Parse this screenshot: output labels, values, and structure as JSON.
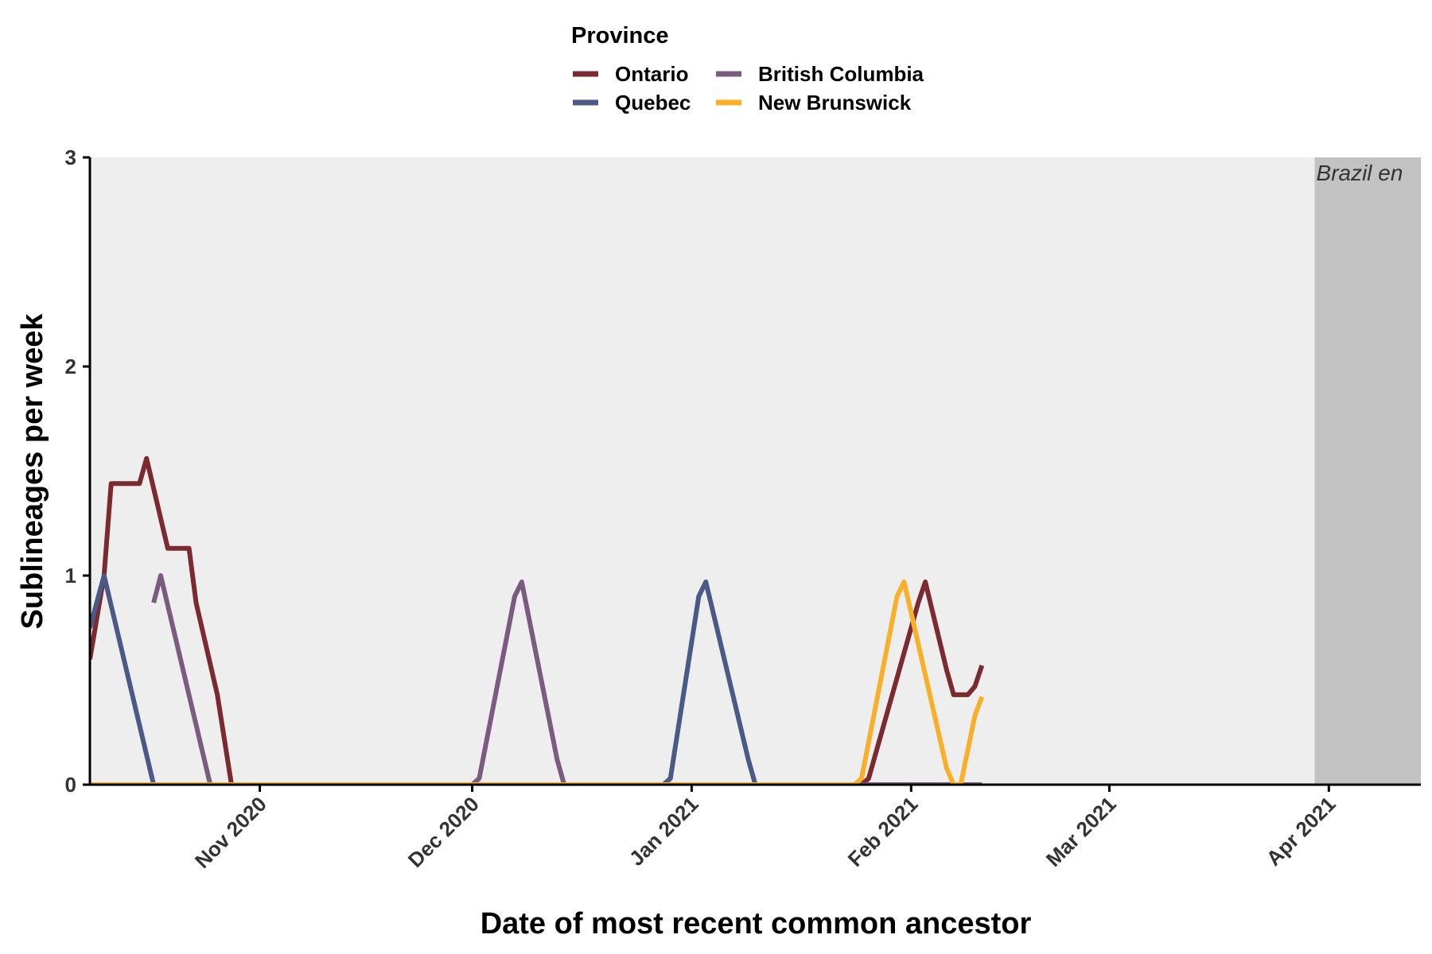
{
  "chart_data": {
    "type": "line",
    "title": "",
    "xlabel": "Date of most recent common ancestor",
    "ylabel": "Sublineages per week",
    "ylim": [
      0,
      3
    ],
    "yticks": [
      0,
      1,
      2,
      3
    ],
    "xlim": [
      "2020-10-08",
      "2021-04-14"
    ],
    "xticks": [
      {
        "date": "2020-11-01",
        "label": "Nov 2020"
      },
      {
        "date": "2020-12-01",
        "label": "Dec 2020"
      },
      {
        "date": "2021-01-01",
        "label": "Jan 2021"
      },
      {
        "date": "2021-02-01",
        "label": "Feb 2021"
      },
      {
        "date": "2021-03-01",
        "label": "Mar 2021"
      },
      {
        "date": "2021-04-01",
        "label": "Apr 2021"
      }
    ],
    "grid": false,
    "legend": {
      "title": "Province",
      "position": "top"
    },
    "annotation": {
      "text": "Brazil en",
      "region_start": "2021-03-30",
      "region_end": "2021-04-14",
      "color": "#c2c2c2"
    },
    "panel_color": "#eeeeee",
    "series": [
      {
        "name": "Ontario",
        "color": "#7b2a30",
        "points": [
          [
            "2020-10-08",
            0.6
          ],
          [
            "2020-10-10",
            1.0
          ],
          [
            "2020-10-11",
            1.44
          ],
          [
            "2020-10-14",
            1.44
          ],
          [
            "2020-10-15",
            1.44
          ],
          [
            "2020-10-15",
            1.44
          ],
          [
            "2020-10-16",
            1.56
          ],
          [
            "2020-10-19",
            1.13
          ],
          [
            "2020-10-22",
            1.13
          ],
          [
            "2020-10-23",
            0.87
          ],
          [
            "2020-10-26",
            0.43
          ],
          [
            "2020-10-28",
            0.0
          ],
          [
            "2021-01-25",
            0.0
          ],
          [
            "2021-01-26",
            0.03
          ],
          [
            "2021-02-02",
            0.87
          ],
          [
            "2021-02-03",
            0.97
          ],
          [
            "2021-02-06",
            0.55
          ],
          [
            "2021-02-07",
            0.43
          ],
          [
            "2021-02-09",
            0.43
          ],
          [
            "2021-02-10",
            0.47
          ],
          [
            "2021-02-11",
            0.57
          ]
        ]
      },
      {
        "name": "Quebec",
        "color": "#4a5a85",
        "points": [
          [
            "2020-10-08",
            0.75
          ],
          [
            "2020-10-10",
            1.0
          ],
          [
            "2020-10-17",
            0.0
          ],
          [
            "2020-12-28",
            0.0
          ],
          [
            "2020-12-29",
            0.03
          ],
          [
            "2021-01-02",
            0.9
          ],
          [
            "2021-01-03",
            0.97
          ],
          [
            "2021-01-09",
            0.12
          ],
          [
            "2021-01-10",
            0.0
          ],
          [
            "2021-02-11",
            0.0
          ]
        ]
      },
      {
        "name": "British Columbia",
        "color": "#7b5c80",
        "points": [
          [
            "2020-10-17",
            0.87
          ],
          [
            "2020-10-18",
            1.0
          ],
          [
            "2020-10-25",
            0.0
          ],
          [
            "2020-12-01",
            0.0
          ],
          [
            "2020-12-02",
            0.03
          ],
          [
            "2020-12-07",
            0.9
          ],
          [
            "2020-12-08",
            0.97
          ],
          [
            "2020-12-13",
            0.12
          ],
          [
            "2020-12-14",
            0.0
          ],
          [
            "2021-02-11",
            0.0
          ]
        ]
      },
      {
        "name": "New Brunswick",
        "color": "#f8b02a",
        "points": [
          [
            "2020-10-08",
            0.0
          ],
          [
            "2021-01-24",
            0.0
          ],
          [
            "2021-01-25",
            0.03
          ],
          [
            "2021-01-30",
            0.9
          ],
          [
            "2021-01-31",
            0.97
          ],
          [
            "2021-02-06",
            0.08
          ],
          [
            "2021-02-07",
            0.0
          ],
          [
            "2021-02-08",
            0.0
          ],
          [
            "2021-02-10",
            0.33
          ],
          [
            "2021-02-11",
            0.42
          ]
        ]
      }
    ]
  }
}
